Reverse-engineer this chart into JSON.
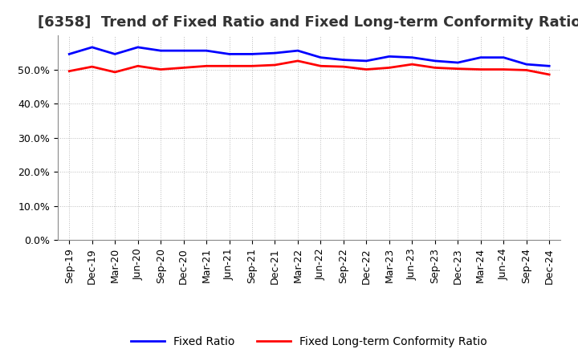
{
  "title": "[6358]  Trend of Fixed Ratio and Fixed Long-term Conformity Ratio",
  "x_labels": [
    "Sep-19",
    "Dec-19",
    "Mar-20",
    "Jun-20",
    "Sep-20",
    "Dec-20",
    "Mar-21",
    "Jun-21",
    "Sep-21",
    "Dec-21",
    "Mar-22",
    "Jun-22",
    "Sep-22",
    "Dec-22",
    "Mar-23",
    "Jun-23",
    "Sep-23",
    "Dec-23",
    "Mar-24",
    "Jun-24",
    "Sep-24",
    "Dec-24"
  ],
  "fixed_ratio": [
    54.5,
    56.5,
    54.5,
    56.5,
    55.5,
    55.5,
    55.5,
    54.5,
    54.5,
    54.8,
    55.5,
    53.5,
    52.8,
    52.5,
    53.8,
    53.5,
    52.5,
    52.0,
    53.5,
    53.5,
    51.5,
    51.0
  ],
  "fixed_lt_ratio": [
    49.5,
    50.8,
    49.2,
    51.0,
    50.0,
    50.5,
    51.0,
    51.0,
    51.0,
    51.3,
    52.5,
    51.0,
    50.8,
    50.0,
    50.5,
    51.5,
    50.5,
    50.2,
    50.0,
    50.0,
    49.8,
    48.5
  ],
  "fixed_ratio_color": "#0000FF",
  "fixed_lt_ratio_color": "#FF0000",
  "ylim": [
    0,
    60
  ],
  "yticks": [
    0.0,
    10.0,
    20.0,
    30.0,
    40.0,
    50.0
  ],
  "background_color": "#FFFFFF",
  "grid_color": "#AAAAAA",
  "legend_fixed_ratio": "Fixed Ratio",
  "legend_fixed_lt_ratio": "Fixed Long-term Conformity Ratio",
  "title_fontsize": 13,
  "tick_fontsize": 9,
  "legend_fontsize": 10
}
